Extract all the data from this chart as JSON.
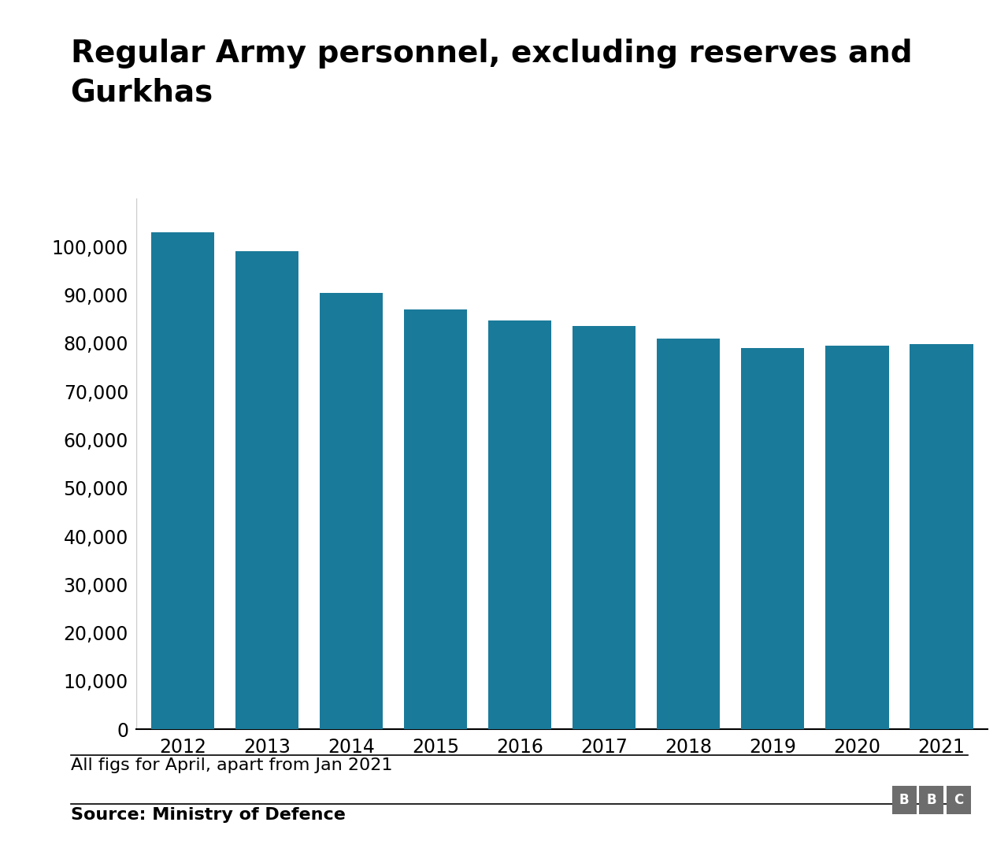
{
  "title_line1": "Regular Army personnel, excluding reserves and",
  "title_line2": "Gurkhas",
  "years": [
    "2012",
    "2013",
    "2014",
    "2015",
    "2016",
    "2017",
    "2018",
    "2019",
    "2020",
    "2021"
  ],
  "values": [
    103000,
    99000,
    90500,
    87000,
    84700,
    83500,
    81000,
    79000,
    79500,
    79800
  ],
  "bar_color": "#1a7a9a",
  "background_color": "#ffffff",
  "ylim": [
    0,
    110000
  ],
  "yticks": [
    0,
    10000,
    20000,
    30000,
    40000,
    50000,
    60000,
    70000,
    80000,
    90000,
    100000
  ],
  "footnote": "All figs for April, apart from Jan 2021",
  "source": "Source: Ministry of Defence",
  "title_fontsize": 28,
  "tick_fontsize": 17,
  "footnote_fontsize": 16,
  "source_fontsize": 16
}
